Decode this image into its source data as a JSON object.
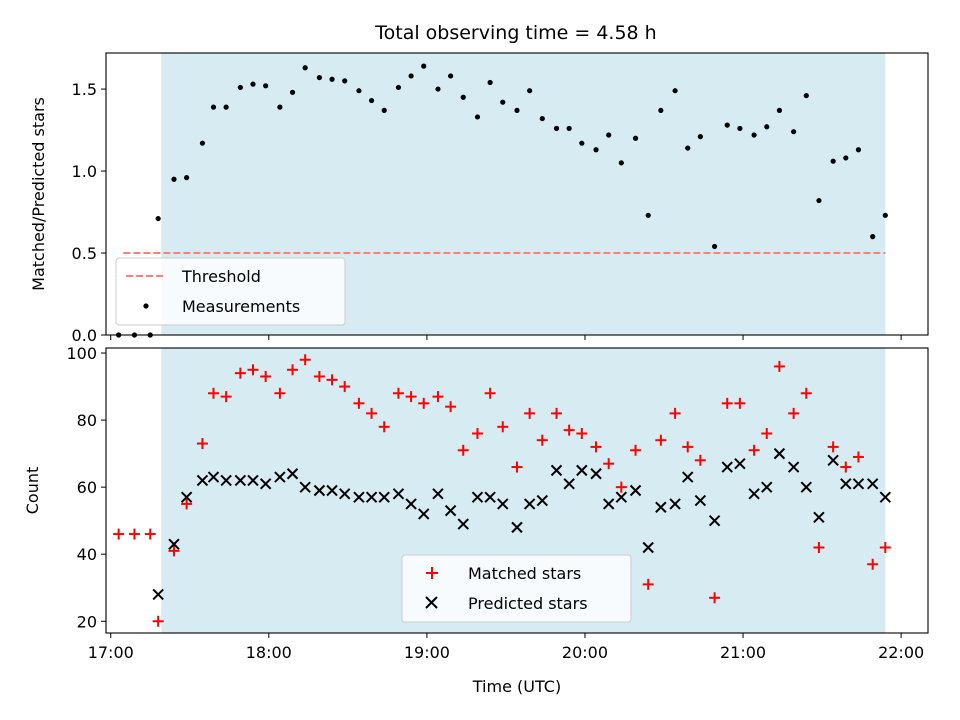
{
  "title": "Total observing time = 4.58 h",
  "colors": {
    "span": "#add8e6",
    "threshold": "#ff7f7f",
    "matched": "#ff0000",
    "predicted": "#000000",
    "measurement": "#000000"
  },
  "chart_data": [
    {
      "type": "scatter",
      "panel": "top",
      "ylabel": "Matched/Predicted stars",
      "xlim": [
        16.97,
        22.17
      ],
      "ylim": [
        0,
        1.72
      ],
      "yticks": [
        0.0,
        0.5,
        1.0,
        1.5
      ],
      "ytick_labels": [
        "0.0",
        "0.5",
        "1.0",
        "1.5"
      ],
      "shaded_span": [
        17.32,
        21.9
      ],
      "threshold": {
        "name": "Threshold",
        "y": 0.5,
        "x": [
          17.08,
          21.9
        ],
        "style": "dashed"
      },
      "legend_position": "lower-left",
      "series": [
        {
          "name": "Measurements",
          "marker": "dot",
          "x": [
            17.05,
            17.15,
            17.25,
            17.3,
            17.4,
            17.48,
            17.58,
            17.65,
            17.73,
            17.82,
            17.9,
            17.98,
            18.07,
            18.15,
            18.23,
            18.32,
            18.4,
            18.48,
            18.57,
            18.65,
            18.73,
            18.82,
            18.9,
            18.98,
            19.07,
            19.15,
            19.23,
            19.32,
            19.4,
            19.48,
            19.57,
            19.65,
            19.73,
            19.82,
            19.9,
            19.98,
            20.07,
            20.15,
            20.23,
            20.32,
            20.4,
            20.48,
            20.57,
            20.65,
            20.73,
            20.82,
            20.9,
            20.98,
            21.07,
            21.15,
            21.23,
            21.32,
            21.4,
            21.48,
            21.57,
            21.65,
            21.73,
            21.82,
            21.9
          ],
          "y": [
            0.0,
            0.0,
            0.0,
            0.71,
            0.95,
            0.96,
            1.17,
            1.39,
            1.39,
            1.51,
            1.53,
            1.52,
            1.39,
            1.48,
            1.63,
            1.57,
            1.56,
            1.55,
            1.49,
            1.43,
            1.37,
            1.51,
            1.58,
            1.64,
            1.5,
            1.58,
            1.45,
            1.33,
            1.54,
            1.42,
            1.37,
            1.49,
            1.32,
            1.26,
            1.26,
            1.17,
            1.13,
            1.22,
            1.05,
            1.2,
            0.73,
            1.37,
            1.49,
            1.14,
            1.21,
            0.54,
            1.28,
            1.26,
            1.22,
            1.27,
            1.37,
            1.24,
            1.46,
            0.82,
            1.06,
            1.08,
            1.13,
            0.6,
            0.73
          ]
        }
      ]
    },
    {
      "type": "scatter",
      "panel": "bottom",
      "ylabel": "Count",
      "xlabel": "Time (UTC)",
      "xlim": [
        16.97,
        22.17
      ],
      "ylim": [
        16.5,
        101.5
      ],
      "xticks": [
        17,
        18,
        19,
        20,
        21,
        22
      ],
      "xtick_labels": [
        "17:00",
        "18:00",
        "19:00",
        "20:00",
        "21:00",
        "22:00"
      ],
      "yticks": [
        20,
        40,
        60,
        80,
        100
      ],
      "ytick_labels": [
        "20",
        "40",
        "60",
        "80",
        "100"
      ],
      "shaded_span": [
        17.32,
        21.9
      ],
      "legend_position": "lower-center",
      "series": [
        {
          "name": "Matched stars",
          "marker": "plus",
          "color": "#ff0000",
          "x": [
            17.05,
            17.15,
            17.25,
            17.3,
            17.4,
            17.48,
            17.58,
            17.65,
            17.73,
            17.82,
            17.9,
            17.98,
            18.07,
            18.15,
            18.23,
            18.32,
            18.4,
            18.48,
            18.57,
            18.65,
            18.73,
            18.82,
            18.9,
            18.98,
            19.07,
            19.15,
            19.23,
            19.32,
            19.4,
            19.48,
            19.57,
            19.65,
            19.73,
            19.82,
            19.9,
            19.98,
            20.07,
            20.15,
            20.23,
            20.32,
            20.4,
            20.48,
            20.57,
            20.65,
            20.73,
            20.82,
            20.9,
            20.98,
            21.07,
            21.15,
            21.23,
            21.32,
            21.4,
            21.48,
            21.57,
            21.65,
            21.73,
            21.82,
            21.9
          ],
          "y": [
            46,
            46,
            46,
            20,
            41,
            55,
            73,
            88,
            87,
            94,
            95,
            93,
            88,
            95,
            98,
            93,
            92,
            90,
            85,
            82,
            78,
            88,
            87,
            85,
            87,
            84,
            71,
            76,
            88,
            78,
            66,
            82,
            74,
            82,
            77,
            76,
            72,
            67,
            60,
            71,
            31,
            74,
            82,
            72,
            68,
            27,
            85,
            85,
            71,
            76,
            96,
            82,
            88,
            42,
            72,
            66,
            69,
            37,
            42
          ]
        },
        {
          "name": "Predicted stars",
          "marker": "x",
          "color": "#000000",
          "x": [
            17.3,
            17.4,
            17.48,
            17.58,
            17.65,
            17.73,
            17.82,
            17.9,
            17.98,
            18.07,
            18.15,
            18.23,
            18.32,
            18.4,
            18.48,
            18.57,
            18.65,
            18.73,
            18.82,
            18.9,
            18.98,
            19.07,
            19.15,
            19.23,
            19.32,
            19.4,
            19.48,
            19.57,
            19.65,
            19.73,
            19.82,
            19.9,
            19.98,
            20.07,
            20.15,
            20.23,
            20.32,
            20.4,
            20.48,
            20.57,
            20.65,
            20.73,
            20.82,
            20.9,
            20.98,
            21.07,
            21.15,
            21.23,
            21.32,
            21.4,
            21.48,
            21.57,
            21.65,
            21.73,
            21.82,
            21.9
          ],
          "y": [
            28,
            43,
            57,
            62,
            63,
            62,
            62,
            62,
            61,
            63,
            64,
            60,
            59,
            59,
            58,
            57,
            57,
            57,
            58,
            55,
            52,
            58,
            53,
            49,
            57,
            57,
            55,
            48,
            55,
            56,
            65,
            61,
            65,
            64,
            55,
            57,
            59,
            42,
            54,
            55,
            63,
            56,
            50,
            66,
            67,
            58,
            60,
            70,
            66,
            60,
            51,
            68,
            61,
            61,
            61,
            57
          ]
        }
      ]
    }
  ]
}
